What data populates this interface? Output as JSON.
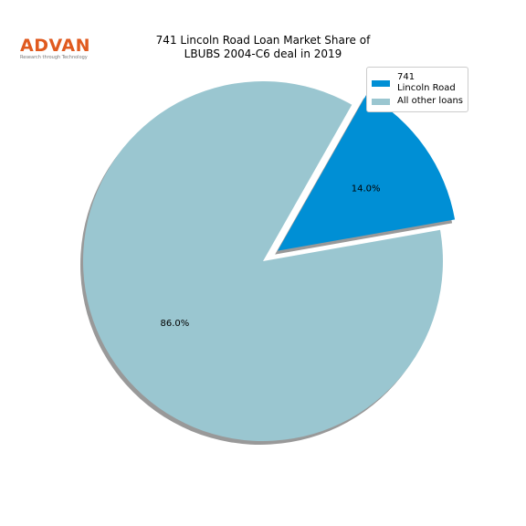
{
  "logo": {
    "text": "ADVAN",
    "tagline": "Research through Technology"
  },
  "chart_data": {
    "type": "pie",
    "title": "741 Lincoln Road Loan Market Share of\nLBUBS 2004-C6 deal in 2019",
    "categories": [
      "741\nLincoln Road",
      "All other loans"
    ],
    "values": [
      14.0,
      86.0
    ],
    "value_labels": [
      "14.0%",
      "86.0%"
    ],
    "colors": [
      "#008fd5",
      "#9ac6d0"
    ],
    "explode": [
      0.1,
      0
    ],
    "startangle": 10,
    "shadow": true,
    "legend": "upper right"
  }
}
